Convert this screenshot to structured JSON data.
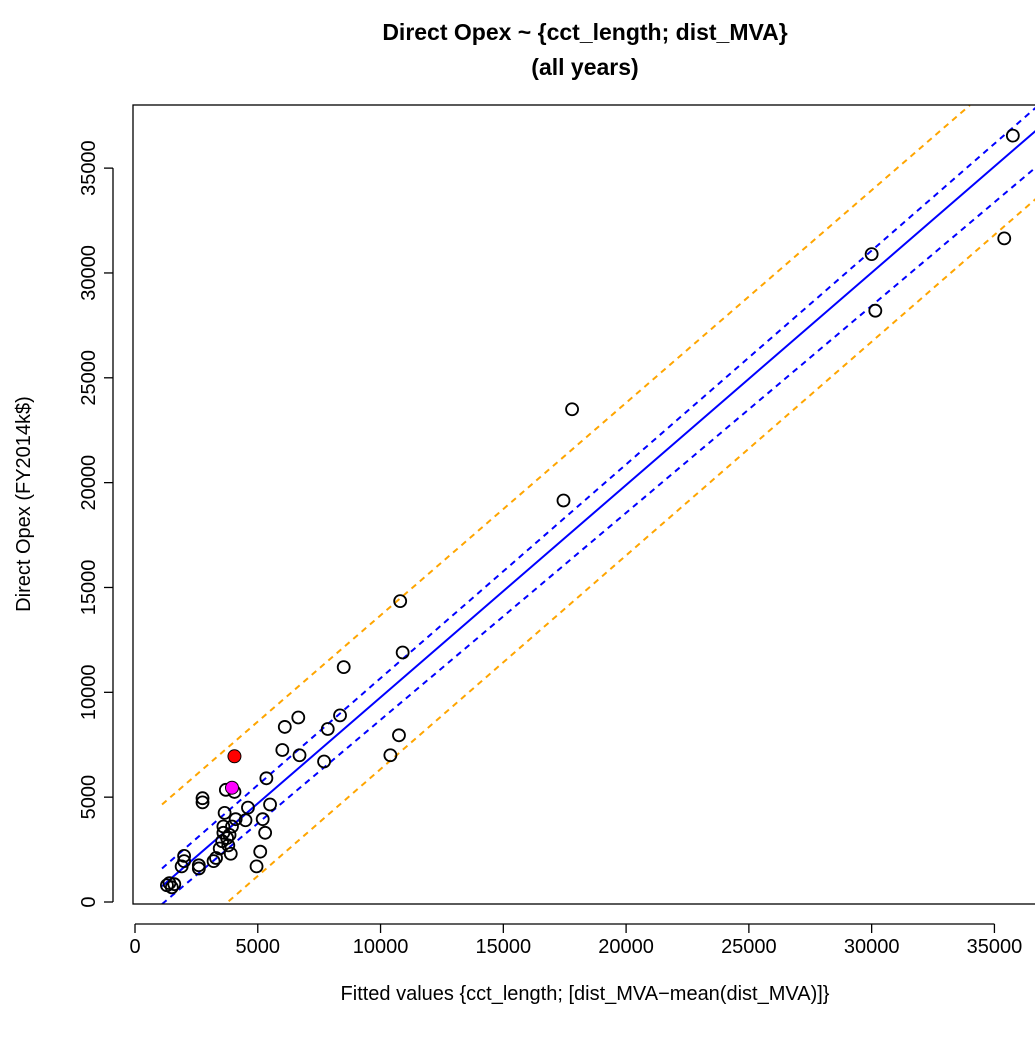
{
  "chart_data": {
    "type": "scatter",
    "title_line1": "Direct Opex ~ {cct_length; dist_MVA}",
    "title_line2": "(all years)",
    "xlabel": "Fitted values {cct_length; [dist_MVA−mean(dist_MVA)]}",
    "ylabel": "Direct Opex (FY2014k$)",
    "xlim": [
      -600,
      36800
    ],
    "ylim": [
      -1500,
      38000
    ],
    "x_ticks": [
      0,
      5000,
      10000,
      15000,
      20000,
      25000,
      30000,
      35000
    ],
    "y_ticks": [
      0,
      5000,
      10000,
      15000,
      20000,
      25000,
      30000,
      35000
    ],
    "grid": false,
    "legend": "none",
    "points": [
      {
        "x": 1300,
        "y": 800
      },
      {
        "x": 1400,
        "y": 900
      },
      {
        "x": 1500,
        "y": 700
      },
      {
        "x": 1600,
        "y": 850
      },
      {
        "x": 1900,
        "y": 1700
      },
      {
        "x": 2000,
        "y": 1950
      },
      {
        "x": 2000,
        "y": 2200
      },
      {
        "x": 2600,
        "y": 1600
      },
      {
        "x": 2600,
        "y": 1750
      },
      {
        "x": 2750,
        "y": 4750
      },
      {
        "x": 2750,
        "y": 4950
      },
      {
        "x": 3200,
        "y": 1950
      },
      {
        "x": 3300,
        "y": 2100
      },
      {
        "x": 3450,
        "y": 2550
      },
      {
        "x": 3550,
        "y": 2900
      },
      {
        "x": 3600,
        "y": 3300
      },
      {
        "x": 3600,
        "y": 3600
      },
      {
        "x": 3650,
        "y": 4250
      },
      {
        "x": 3700,
        "y": 5350
      },
      {
        "x": 3750,
        "y": 3050
      },
      {
        "x": 3800,
        "y": 2700
      },
      {
        "x": 3850,
        "y": 3200
      },
      {
        "x": 3900,
        "y": 2300
      },
      {
        "x": 3950,
        "y": 3600
      },
      {
        "x": 4050,
        "y": 5250
      },
      {
        "x": 4100,
        "y": 3950
      },
      {
        "x": 4500,
        "y": 3900
      },
      {
        "x": 4600,
        "y": 4500
      },
      {
        "x": 4950,
        "y": 1700
      },
      {
        "x": 5100,
        "y": 2400
      },
      {
        "x": 5200,
        "y": 3950
      },
      {
        "x": 5300,
        "y": 3300
      },
      {
        "x": 5350,
        "y": 5900
      },
      {
        "x": 5500,
        "y": 4650
      },
      {
        "x": 6000,
        "y": 7250
      },
      {
        "x": 6100,
        "y": 8350
      },
      {
        "x": 6650,
        "y": 8800
      },
      {
        "x": 6700,
        "y": 7000
      },
      {
        "x": 7700,
        "y": 6700
      },
      {
        "x": 7850,
        "y": 8250
      },
      {
        "x": 8350,
        "y": 8900
      },
      {
        "x": 8500,
        "y": 11200
      },
      {
        "x": 10400,
        "y": 7000
      },
      {
        "x": 10750,
        "y": 7950
      },
      {
        "x": 10800,
        "y": 14350
      },
      {
        "x": 10900,
        "y": 11900
      },
      {
        "x": 17450,
        "y": 19150
      },
      {
        "x": 17800,
        "y": 23500
      },
      {
        "x": 30000,
        "y": 30900
      },
      {
        "x": 30150,
        "y": 28200
      },
      {
        "x": 35400,
        "y": 31650
      },
      {
        "x": 35750,
        "y": 36550
      }
    ],
    "highlight_points": [
      {
        "x": 4050,
        "y": 6950,
        "color": "#ff0000"
      },
      {
        "x": 3950,
        "y": 5450,
        "color": "#ff00ff"
      }
    ],
    "fit_line": {
      "x": [
        1100,
        36800
      ],
      "y": [
        750,
        36900
      ],
      "color": "#0000ff",
      "style": "solid"
    },
    "confidence_band": {
      "lower": {
        "x": [
          1100,
          36800
        ],
        "y": [
          -100,
          35150
        ]
      },
      "upper": {
        "x": [
          1100,
          36800
        ],
        "y": [
          1600,
          38000
        ]
      },
      "color": "#0000ff",
      "style": "dashed"
    },
    "prediction_band": {
      "lower": {
        "x": [
          2800,
          36800
        ],
        "y": [
          -1000,
          33650
        ]
      },
      "upper": {
        "x": [
          1100,
          34000
        ],
        "y": [
          4650,
          38000
        ]
      },
      "color": "#ffa500",
      "style": "dashed"
    }
  }
}
